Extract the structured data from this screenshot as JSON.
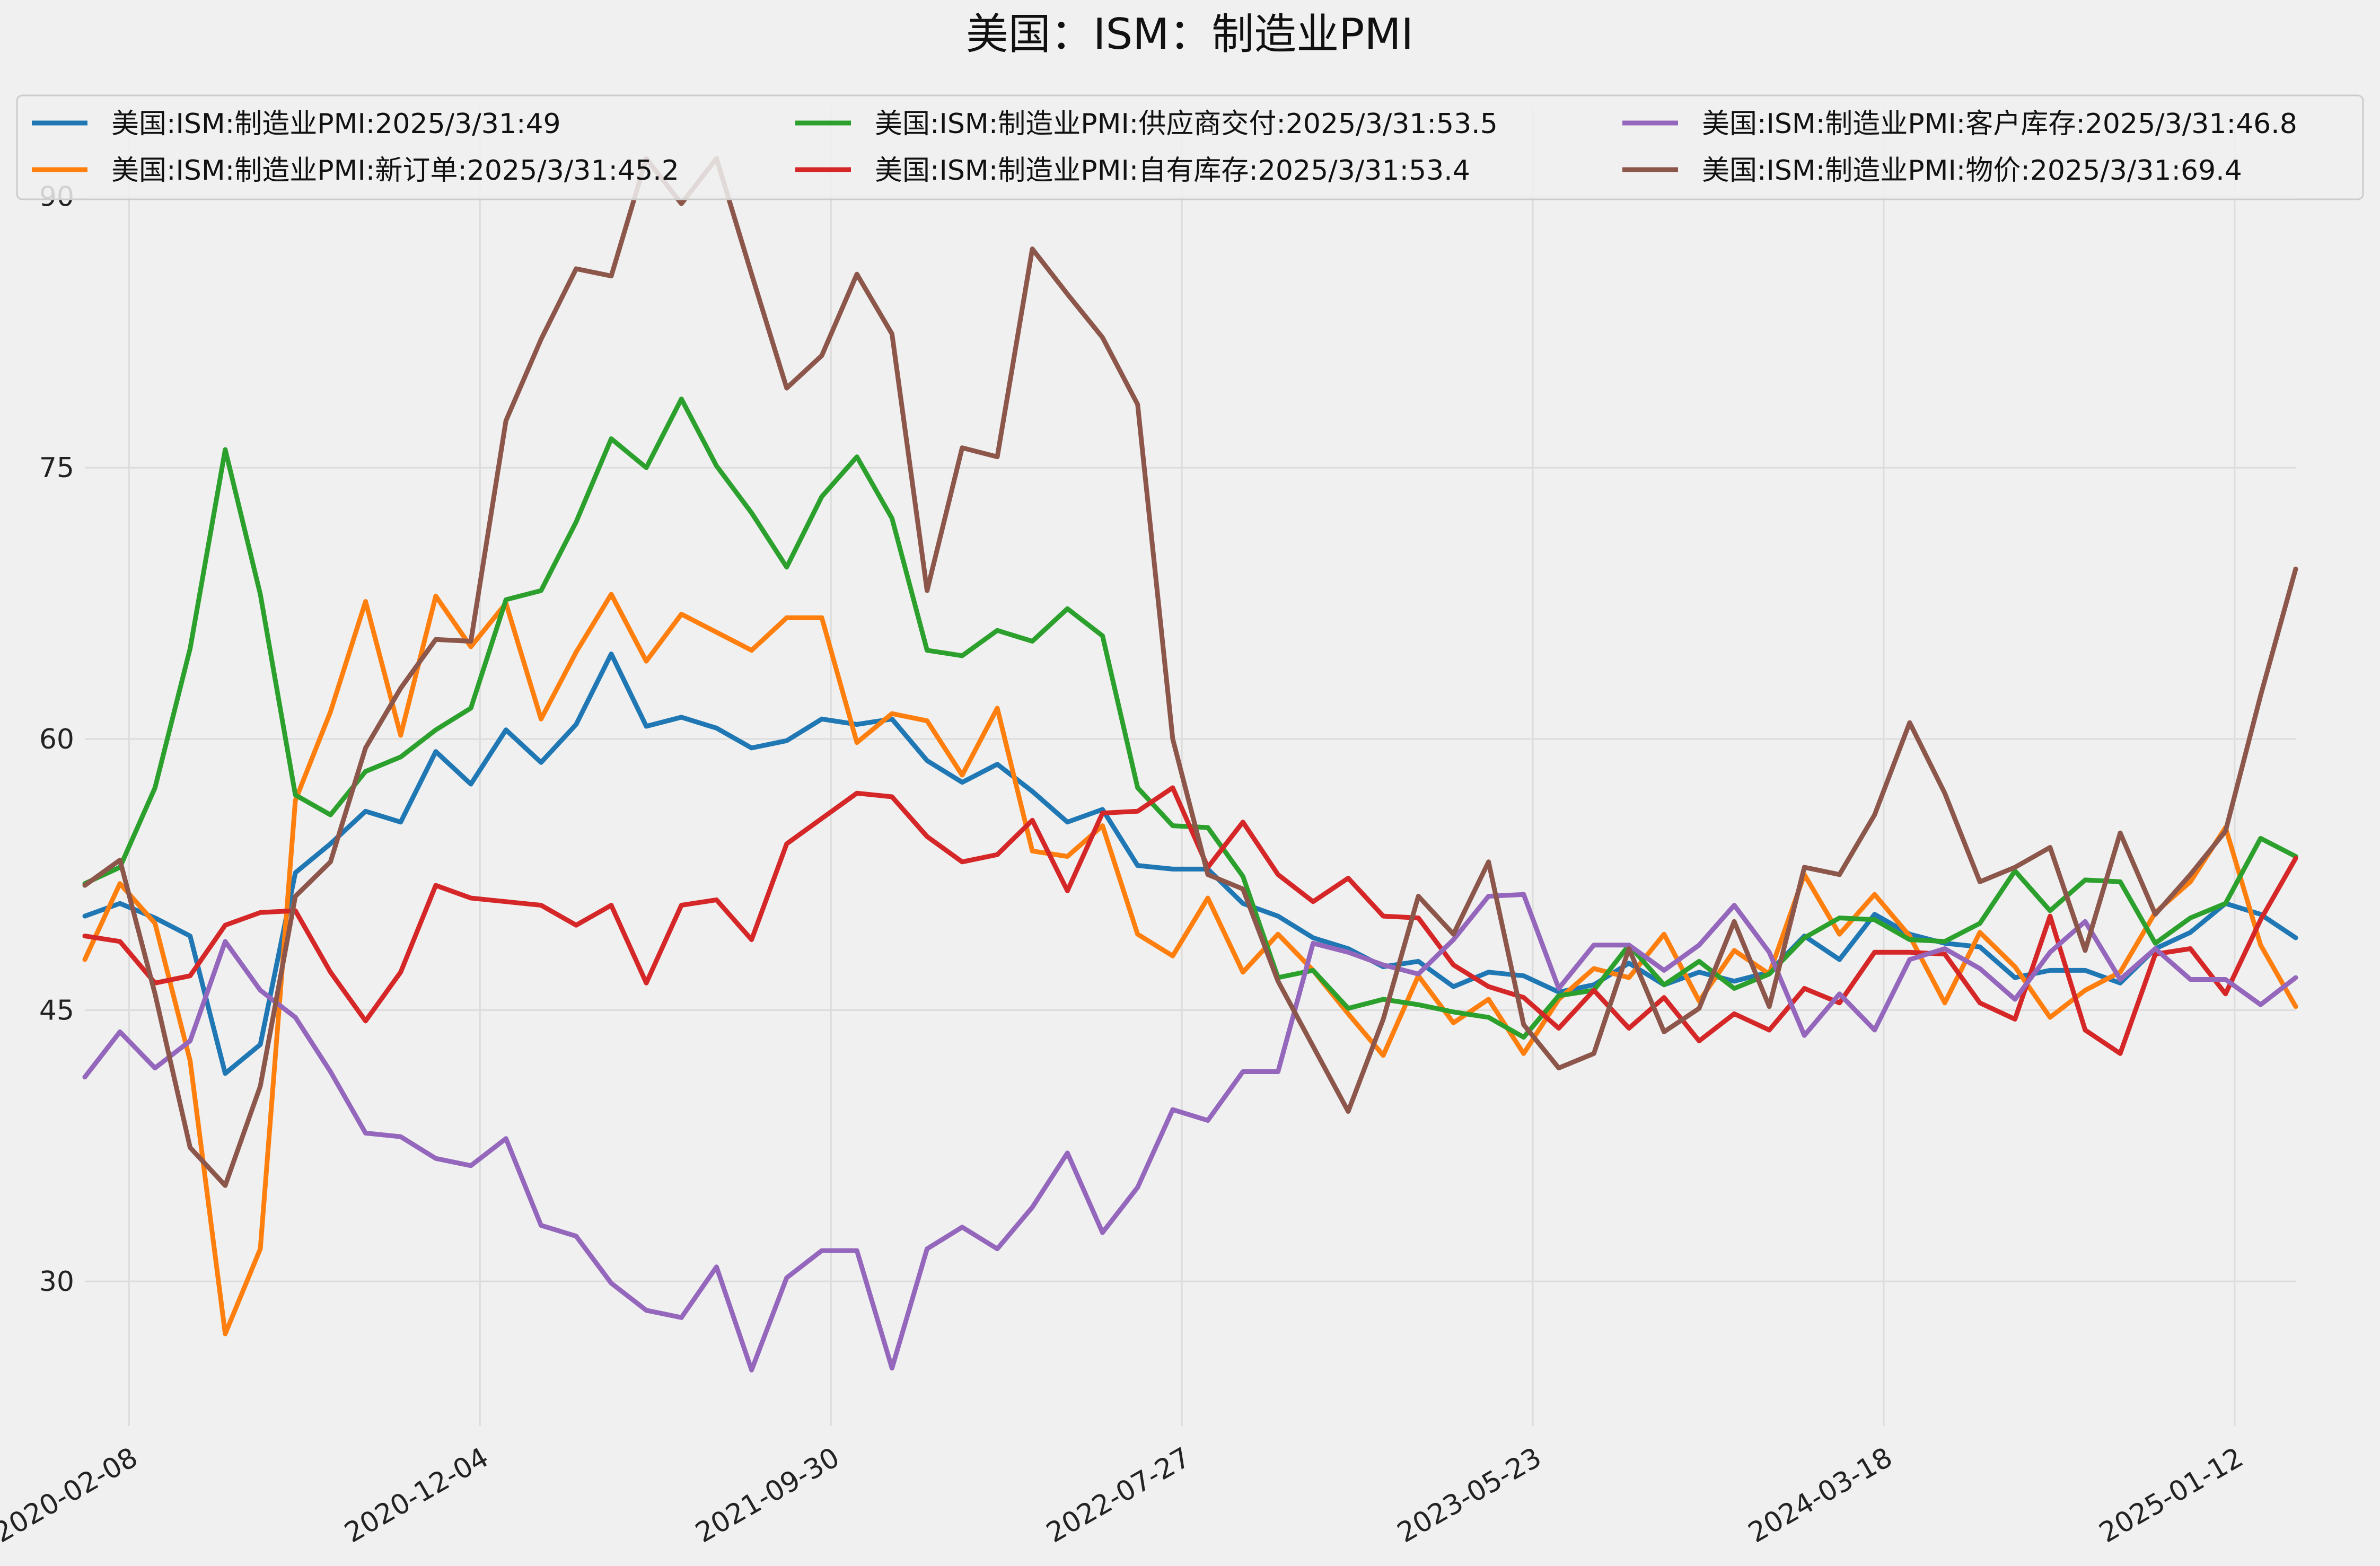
{
  "chart_data": {
    "type": "line",
    "title": "美国：ISM：制造业PMI",
    "xlabel": "",
    "ylabel": "",
    "ylim": [
      22,
      95
    ],
    "y_ticks": [
      30,
      45,
      60,
      75,
      90
    ],
    "grid": true,
    "legend_position": "top",
    "x_tick_labels": [
      "2020-02-08",
      "2020-12-04",
      "2021-09-30",
      "2022-07-27",
      "2023-05-23",
      "2024-03-18",
      "2025-01-12"
    ],
    "x_tick_index_positions": [
      1.26,
      11.26,
      21.26,
      31.26,
      41.26,
      51.26,
      61.26
    ],
    "x_range_index": [
      0,
      63
    ],
    "series": [
      {
        "name": "美国:ISM:制造业PMI:2025/3/31:49",
        "color": "#1f77b4",
        "values": [
          50.2,
          50.9,
          50.1,
          49.1,
          41.5,
          43.1,
          52.6,
          54.2,
          56.0,
          55.4,
          59.3,
          57.5,
          60.5,
          58.7,
          60.8,
          64.7,
          60.7,
          61.2,
          60.6,
          59.5,
          59.9,
          61.1,
          60.8,
          61.1,
          58.8,
          57.6,
          58.6,
          57.1,
          55.4,
          56.1,
          53.0,
          52.8,
          52.8,
          50.9,
          50.2,
          49.0,
          48.4,
          47.4,
          47.7,
          46.3,
          47.1,
          46.9,
          46.0,
          46.4,
          47.6,
          46.4,
          47.1,
          46.6,
          47.1,
          49.1,
          47.8,
          50.3,
          49.2,
          48.7,
          48.5,
          46.8,
          47.2,
          47.2,
          46.5,
          48.4,
          49.3,
          50.9,
          50.3,
          49.0
        ]
      },
      {
        "name": "美国:ISM:制造业PMI:新订单:2025/3/31:45.2",
        "color": "#ff7f0e",
        "values": [
          47.8,
          52.0,
          49.8,
          42.2,
          27.1,
          31.8,
          56.6,
          61.5,
          67.6,
          60.2,
          67.9,
          65.1,
          67.5,
          61.1,
          64.8,
          68.0,
          64.3,
          66.9,
          65.9,
          64.9,
          66.7,
          66.7,
          59.8,
          61.4,
          61.0,
          58.0,
          61.7,
          53.8,
          53.5,
          55.2,
          49.2,
          48.0,
          51.2,
          47.1,
          49.2,
          47.2,
          44.8,
          42.5,
          46.9,
          44.3,
          45.6,
          42.6,
          45.6,
          47.3,
          46.8,
          49.2,
          45.5,
          48.3,
          47.0,
          52.5,
          49.2,
          51.4,
          49.1,
          45.4,
          49.3,
          47.4,
          44.6,
          46.1,
          47.1,
          50.4,
          52.1,
          55.1,
          48.6,
          45.2
        ]
      },
      {
        "name": "美国:ISM:制造业PMI:供应商交付:2025/3/31:53.5",
        "color": "#2ca02c",
        "values": [
          52.0,
          52.9,
          57.3,
          65.0,
          76.0,
          68.0,
          56.9,
          55.8,
          58.2,
          59.0,
          60.5,
          61.7,
          67.7,
          68.2,
          72.0,
          76.6,
          75.0,
          78.8,
          75.1,
          72.5,
          69.5,
          73.4,
          75.6,
          72.2,
          64.9,
          64.6,
          66.0,
          65.4,
          67.2,
          65.7,
          57.3,
          55.2,
          55.1,
          52.4,
          46.8,
          47.2,
          45.1,
          45.6,
          45.3,
          44.9,
          44.6,
          43.5,
          45.8,
          46.1,
          48.6,
          46.4,
          47.7,
          46.2,
          47.0,
          49.0,
          50.1,
          50.0,
          48.9,
          48.8,
          49.8,
          52.7,
          50.5,
          52.2,
          52.1,
          48.7,
          50.1,
          50.9,
          54.5,
          53.5
        ]
      },
      {
        "name": "美国:ISM:制造业PMI:自有库存:2025/3/31:53.4",
        "color": "#d62728",
        "values": [
          49.1,
          48.8,
          46.5,
          46.9,
          49.7,
          50.4,
          50.5,
          47.1,
          44.4,
          47.1,
          51.9,
          51.2,
          51.0,
          50.8,
          49.7,
          50.8,
          46.5,
          50.8,
          51.1,
          48.9,
          54.2,
          55.6,
          57.0,
          56.8,
          54.6,
          53.2,
          53.6,
          55.5,
          51.6,
          55.9,
          56.0,
          57.3,
          52.9,
          55.4,
          52.5,
          51.0,
          52.3,
          50.2,
          50.1,
          47.5,
          46.3,
          45.7,
          44.0,
          46.1,
          44.0,
          45.7,
          43.3,
          44.8,
          43.9,
          46.2,
          45.4,
          48.2,
          48.2,
          48.1,
          45.4,
          44.5,
          50.2,
          43.9,
          42.6,
          48.1,
          48.4,
          45.9,
          50.0,
          53.4
        ]
      },
      {
        "name": "美国:ISM:制造业PMI:客户库存:2025/3/31:46.8",
        "color": "#9467bd",
        "values": [
          41.3,
          43.8,
          41.8,
          43.3,
          48.8,
          46.1,
          44.6,
          41.6,
          38.2,
          38.0,
          36.8,
          36.4,
          37.9,
          33.1,
          32.5,
          29.9,
          28.4,
          28.0,
          30.8,
          25.1,
          30.2,
          31.7,
          31.7,
          25.2,
          31.8,
          33.0,
          31.8,
          34.1,
          37.1,
          32.7,
          35.2,
          39.5,
          38.9,
          41.6,
          41.6,
          48.7,
          48.2,
          47.5,
          47.0,
          48.9,
          51.3,
          51.4,
          46.2,
          48.6,
          48.6,
          47.2,
          48.6,
          50.8,
          48.2,
          43.6,
          45.9,
          43.9,
          47.8,
          48.4,
          47.3,
          45.6,
          48.2,
          49.9,
          46.7,
          48.4,
          46.7,
          46.7,
          45.3,
          46.8
        ]
      },
      {
        "name": "美国:ISM:制造业PMI:物价:2025/3/31:69.4",
        "color": "#8c564b",
        "values": [
          51.9,
          53.3,
          45.9,
          37.4,
          35.3,
          40.8,
          51.3,
          53.2,
          59.5,
          62.8,
          65.5,
          65.4,
          77.6,
          82.1,
          86.0,
          85.6,
          92.1,
          89.6,
          92.1,
          85.7,
          79.4,
          81.2,
          85.7,
          82.4,
          68.2,
          76.1,
          75.6,
          87.1,
          84.6,
          82.2,
          78.5,
          60.0,
          52.5,
          51.7,
          46.6,
          43.0,
          39.4,
          44.5,
          51.3,
          49.2,
          53.2,
          44.2,
          41.8,
          42.6,
          48.4,
          43.8,
          45.1,
          49.9,
          45.2,
          52.9,
          52.5,
          55.8,
          60.9,
          57.0,
          52.1,
          52.9,
          54.0,
          48.3,
          54.8,
          50.3,
          52.5,
          54.9,
          62.4,
          69.4
        ]
      }
    ]
  }
}
